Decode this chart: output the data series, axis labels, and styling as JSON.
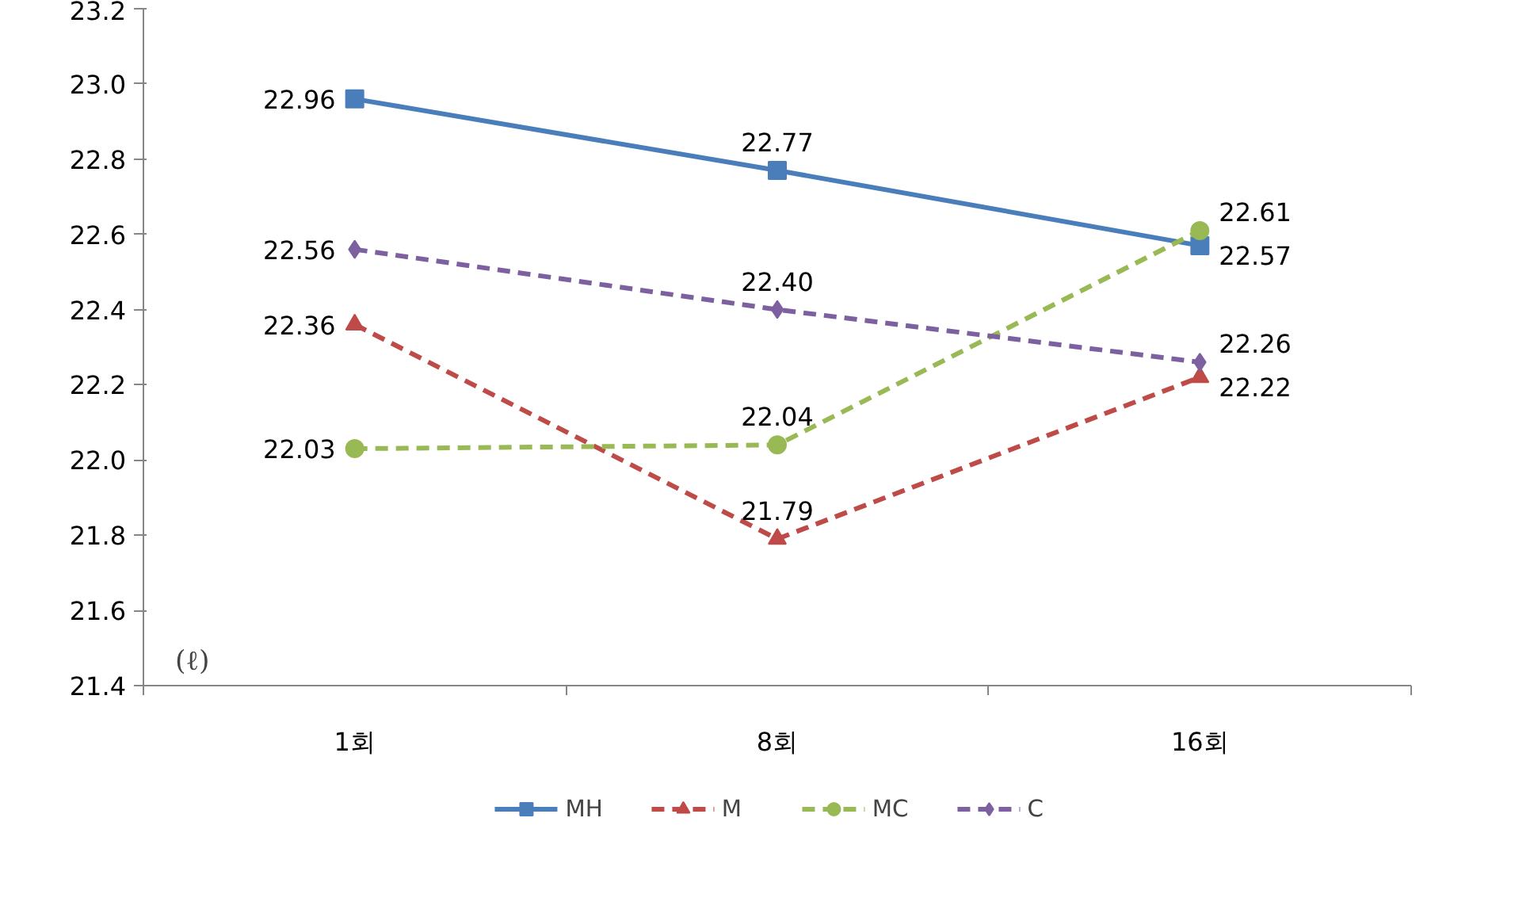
{
  "chart_data": {
    "type": "line",
    "ylabel": "(ℓ)",
    "categories": [
      "1회",
      "8회",
      "16회"
    ],
    "series": [
      {
        "name": "MH",
        "color": "#4a7ebb",
        "values": [
          22.96,
          22.77,
          22.57
        ],
        "value_labels": [
          "22.96",
          "22.77",
          "22.57"
        ],
        "marker": "square",
        "line_style": "solid"
      },
      {
        "name": "M",
        "color": "#be4b48",
        "values": [
          22.36,
          21.79,
          22.22
        ],
        "value_labels": [
          "22.36",
          "21.79",
          "22.22"
        ],
        "marker": "triangle",
        "line_style": "dashed"
      },
      {
        "name": "MC",
        "color": "#98b954",
        "values": [
          22.03,
          22.04,
          22.61
        ],
        "value_labels": [
          "22.03",
          "22.04",
          "22.61"
        ],
        "marker": "circle",
        "line_style": "dashed"
      },
      {
        "name": "C",
        "color": "#7d60a0",
        "values": [
          22.56,
          22.4,
          22.26
        ],
        "value_labels": [
          "22.56",
          "22.40",
          "22.26"
        ],
        "marker": "diamond",
        "line_style": "dashed"
      }
    ],
    "ylim": [
      21.4,
      23.2
    ],
    "yticks": [
      {
        "value": 21.4,
        "label": "21.4"
      },
      {
        "value": 21.6,
        "label": "21.6"
      },
      {
        "value": 21.8,
        "label": "21.8"
      },
      {
        "value": 22.0,
        "label": "22.0"
      },
      {
        "value": 22.2,
        "label": "22.2"
      },
      {
        "value": 22.4,
        "label": "22.4"
      },
      {
        "value": 22.6,
        "label": "22.6"
      },
      {
        "value": 22.8,
        "label": "22.8"
      },
      {
        "value": 23.0,
        "label": "23.0"
      },
      {
        "value": 23.2,
        "label": "23.2"
      }
    ],
    "grid": false,
    "legend": "bottom"
  }
}
